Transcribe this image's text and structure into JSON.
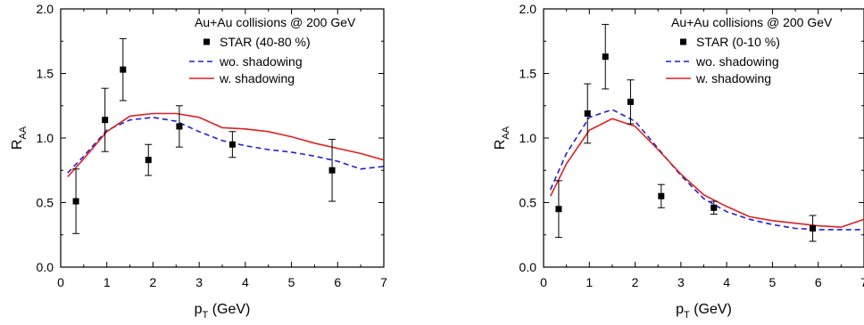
{
  "chart_data": [
    {
      "type": "line",
      "title": "",
      "xlabel": "p_T (GeV)",
      "ylabel": "R_AA",
      "xlim": [
        0,
        7
      ],
      "ylim": [
        0,
        2.0
      ],
      "xticks": [
        "0",
        "1",
        "2",
        "3",
        "4",
        "5",
        "6",
        "7"
      ],
      "yticks": [
        "0.0",
        "0.5",
        "1.0",
        "1.5",
        "2.0"
      ],
      "legend": {
        "position": "top-right",
        "header": "Au+Au collisions @ 200 GeV",
        "entries": [
          "STAR (40-80 %)",
          "wo. shadowing",
          "w. shadowing"
        ]
      },
      "data_series": {
        "name": "STAR (40-80 %)",
        "marker": "square",
        "color": "#000000",
        "x": [
          0.33,
          0.96,
          1.35,
          1.9,
          2.57,
          3.72,
          5.88
        ],
        "y": [
          0.51,
          1.14,
          1.53,
          0.83,
          1.09,
          0.95,
          0.75
        ],
        "err": [
          0.25,
          0.245,
          0.24,
          0.12,
          0.16,
          0.1,
          0.24
        ]
      },
      "series": [
        {
          "name": "wo. shadowing",
          "style": "dashed",
          "color": "#1f1fd6",
          "x": [
            0.15,
            0.5,
            1.0,
            1.5,
            2.0,
            2.5,
            3.0,
            3.5,
            4.0,
            4.5,
            5.0,
            5.5,
            6.0,
            6.5,
            7.0
          ],
          "y": [
            0.73,
            0.86,
            1.06,
            1.14,
            1.16,
            1.13,
            1.05,
            0.98,
            0.94,
            0.91,
            0.89,
            0.86,
            0.82,
            0.76,
            0.78
          ]
        },
        {
          "name": "w. shadowing",
          "style": "solid",
          "color": "#e02020",
          "x": [
            0.15,
            0.5,
            1.0,
            1.5,
            2.0,
            2.5,
            3.0,
            3.5,
            4.0,
            4.5,
            5.0,
            5.5,
            6.0,
            6.5,
            7.0
          ],
          "y": [
            0.7,
            0.84,
            1.05,
            1.17,
            1.19,
            1.19,
            1.16,
            1.08,
            1.07,
            1.05,
            1.01,
            0.96,
            0.92,
            0.88,
            0.83
          ]
        }
      ]
    },
    {
      "type": "line",
      "title": "",
      "xlabel": "p_T (GeV)",
      "ylabel": "R_AA",
      "xlim": [
        0,
        7
      ],
      "ylim": [
        0,
        2.0
      ],
      "xticks": [
        "0",
        "1",
        "2",
        "3",
        "4",
        "5",
        "6",
        "7"
      ],
      "yticks": [
        "0.0",
        "0.5",
        "1.0",
        "1.5",
        "2.0"
      ],
      "legend": {
        "position": "top-right",
        "header": "Au+Au collisions @ 200 GeV",
        "entries": [
          "STAR (0-10 %)",
          "wo. shadowing",
          "w. shadowing"
        ]
      },
      "data_series": {
        "name": "STAR (0-10 %)",
        "marker": "square",
        "color": "#000000",
        "x": [
          0.33,
          0.96,
          1.35,
          1.9,
          2.57,
          3.72,
          5.88
        ],
        "y": [
          0.45,
          1.19,
          1.63,
          1.28,
          0.55,
          0.46,
          0.3
        ],
        "err": [
          0.22,
          0.23,
          0.25,
          0.17,
          0.09,
          0.05,
          0.1
        ]
      },
      "series": [
        {
          "name": "wo. shadowing",
          "style": "dashed",
          "color": "#1f1fd6",
          "x": [
            0.15,
            0.5,
            1.0,
            1.5,
            2.0,
            2.5,
            3.0,
            3.5,
            4.0,
            4.5,
            5.0,
            5.5,
            6.0,
            6.5,
            7.0
          ],
          "y": [
            0.6,
            0.88,
            1.16,
            1.22,
            1.13,
            0.92,
            0.71,
            0.53,
            0.43,
            0.37,
            0.33,
            0.3,
            0.29,
            0.29,
            0.29
          ]
        },
        {
          "name": "w. shadowing",
          "style": "solid",
          "color": "#e02020",
          "x": [
            0.15,
            0.5,
            1.0,
            1.5,
            2.0,
            2.5,
            3.0,
            3.5,
            4.0,
            4.5,
            5.0,
            5.5,
            6.0,
            6.5,
            7.0
          ],
          "y": [
            0.55,
            0.8,
            1.06,
            1.15,
            1.09,
            0.91,
            0.72,
            0.56,
            0.47,
            0.39,
            0.36,
            0.34,
            0.32,
            0.31,
            0.37
          ]
        }
      ]
    }
  ]
}
